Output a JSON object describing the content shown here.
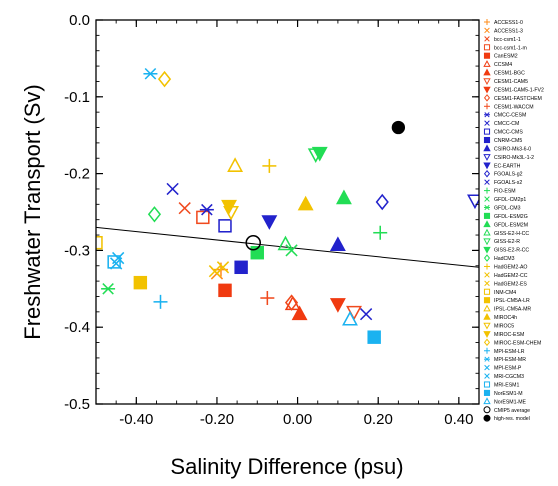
{
  "chart_data": {
    "type": "scatter",
    "title": "",
    "xlabel": "Salinity Difference (psu)",
    "ylabel": "Freshwater Transport (Sv)",
    "xlim": [
      -0.5,
      0.45
    ],
    "ylim": [
      -0.5,
      0.0
    ],
    "x_ticks": [
      -0.4,
      -0.2,
      0.0,
      0.2,
      0.4
    ],
    "x_tick_labels": [
      "-0.40",
      "-0.20",
      "0.00",
      "0.20",
      "0.40"
    ],
    "y_ticks": [
      0.0,
      -0.1,
      -0.2,
      -0.3,
      -0.4,
      -0.5
    ],
    "y_tick_labels": [
      "0.0",
      "-0.1",
      "-0.2",
      "-0.3",
      "-0.4",
      "-0.5"
    ],
    "grid": false,
    "legend_position": "right",
    "regression_line": {
      "x": [
        -0.5,
        0.45
      ],
      "y": [
        -0.27,
        -0.322
      ]
    },
    "series": [
      {
        "name": "ACCESS1-0",
        "marker": "plus",
        "color": "#ff8c1a",
        "filled": false,
        "points": [
          [
            -0.19,
            -0.325
          ]
        ]
      },
      {
        "name": "ACCESS1-3",
        "marker": "x",
        "color": "#ff8c1a",
        "filled": false,
        "points": [
          [
            -0.2,
            -0.33
          ]
        ]
      },
      {
        "name": "bcc-csm1-1",
        "marker": "x",
        "color": "#f04a1e",
        "filled": false,
        "points": [
          [
            -0.28,
            -0.245
          ]
        ]
      },
      {
        "name": "bcc-csm1-1-m",
        "marker": "square",
        "color": "#f04a1e",
        "filled": false,
        "points": [
          [
            -0.235,
            -0.257
          ]
        ]
      },
      {
        "name": "CanESM2",
        "marker": "square",
        "color": "#f03a10",
        "filled": true,
        "points": [
          [
            -0.18,
            -0.352
          ]
        ]
      },
      {
        "name": "CCSM4",
        "marker": "triangle",
        "color": "#f03a10",
        "filled": false,
        "points": [
          [
            -0.012,
            -0.37
          ]
        ]
      },
      {
        "name": "CESM1-BGC",
        "marker": "triangle",
        "color": "#f03a10",
        "filled": true,
        "points": [
          [
            0.005,
            -0.383
          ]
        ]
      },
      {
        "name": "CESM1-CAM5",
        "marker": "triangle-down",
        "color": "#f04a1e",
        "filled": false,
        "points": [
          [
            0.14,
            -0.38
          ]
        ]
      },
      {
        "name": "CESM1-CAM5-1-FV2",
        "marker": "triangle-down",
        "color": "#f03a10",
        "filled": true,
        "points": [
          [
            0.1,
            -0.37
          ]
        ]
      },
      {
        "name": "CESM1-FASTCHEM",
        "marker": "diamond",
        "color": "#f04a1e",
        "filled": false,
        "points": [
          [
            -0.015,
            -0.368
          ]
        ]
      },
      {
        "name": "CESM1-WACCM",
        "marker": "plus",
        "color": "#f04a1e",
        "filled": false,
        "points": [
          [
            -0.075,
            -0.362
          ]
        ]
      },
      {
        "name": "CMCC-CESM",
        "marker": "asterisk",
        "color": "#2222cc",
        "filled": false,
        "points": [
          [
            -0.225,
            -0.247
          ]
        ]
      },
      {
        "name": "CMCC-CM",
        "marker": "x",
        "color": "#2222cc",
        "filled": false,
        "points": [
          [
            -0.31,
            -0.22
          ]
        ]
      },
      {
        "name": "CMCC-CMS",
        "marker": "square",
        "color": "#2222cc",
        "filled": false,
        "points": [
          [
            -0.18,
            -0.268
          ]
        ]
      },
      {
        "name": "CNRM-CM5",
        "marker": "square",
        "color": "#2222cc",
        "filled": true,
        "points": [
          [
            -0.14,
            -0.322
          ]
        ]
      },
      {
        "name": "CSIRO-Mk3-6-0",
        "marker": "triangle",
        "color": "#2222cc",
        "filled": true,
        "points": [
          [
            0.1,
            -0.293
          ]
        ]
      },
      {
        "name": "CSIRO-Mk3L-1-2",
        "marker": "triangle-down",
        "color": "#2222cc",
        "filled": false,
        "points": [
          [
            0.44,
            -0.235
          ]
        ]
      },
      {
        "name": "EC-EARTH",
        "marker": "triangle-down",
        "color": "#2222cc",
        "filled": true,
        "points": [
          [
            -0.07,
            -0.262
          ]
        ]
      },
      {
        "name": "FGOALS-g2",
        "marker": "diamond",
        "color": "#2222cc",
        "filled": false,
        "points": [
          [
            0.21,
            -0.237
          ]
        ]
      },
      {
        "name": "FGOALS-s2",
        "marker": "x",
        "color": "#2222cc",
        "filled": false,
        "points": [
          [
            0.17,
            -0.383
          ]
        ]
      },
      {
        "name": "FIO-ESM",
        "marker": "plus",
        "color": "#22dd55",
        "filled": false,
        "points": [
          [
            0.205,
            -0.277
          ]
        ]
      },
      {
        "name": "GFDL-CM2p1",
        "marker": "x",
        "color": "#22dd55",
        "filled": false,
        "points": [
          [
            -0.015,
            -0.3
          ]
        ]
      },
      {
        "name": "GFDL-CM3",
        "marker": "asterisk",
        "color": "#22dd55",
        "filled": false,
        "points": [
          [
            -0.47,
            -0.35
          ]
        ]
      },
      {
        "name": "GFDL-ESM2G",
        "marker": "square",
        "color": "#22dd55",
        "filled": true,
        "points": [
          [
            -0.1,
            -0.303
          ]
        ]
      },
      {
        "name": "GFDL-ESM2M",
        "marker": "triangle",
        "color": "#22dd55",
        "filled": true,
        "points": [
          [
            0.115,
            -0.232
          ]
        ]
      },
      {
        "name": "GISS-E2-H-CC",
        "marker": "triangle",
        "color": "#22dd55",
        "filled": false,
        "points": [
          [
            -0.03,
            -0.292
          ]
        ]
      },
      {
        "name": "GISS-E2-R",
        "marker": "triangle-down",
        "color": "#22dd55",
        "filled": false,
        "points": [
          [
            0.045,
            -0.175
          ]
        ]
      },
      {
        "name": "GISS-E2-R-CC",
        "marker": "triangle-down",
        "color": "#22dd55",
        "filled": true,
        "points": [
          [
            0.055,
            -0.173
          ]
        ]
      },
      {
        "name": "HadCM3",
        "marker": "diamond",
        "color": "#22dd55",
        "filled": false,
        "points": [
          [
            -0.355,
            -0.253
          ]
        ]
      },
      {
        "name": "HadGEM2-AO",
        "marker": "plus",
        "color": "#f2c200",
        "filled": false,
        "points": [
          [
            -0.07,
            -0.19
          ]
        ]
      },
      {
        "name": "HadGEM2-CC",
        "marker": "x",
        "color": "#f2c200",
        "filled": false,
        "points": [
          [
            -0.185,
            -0.322
          ]
        ]
      },
      {
        "name": "HadGEM2-ES",
        "marker": "x",
        "color": "#f2c200",
        "filled": false,
        "points": [
          [
            -0.205,
            -0.327
          ]
        ]
      },
      {
        "name": "INM-CM4",
        "marker": "square",
        "color": "#f2c200",
        "filled": false,
        "points": [
          [
            -0.5,
            -0.29
          ]
        ]
      },
      {
        "name": "IPSL-CM5A-LR",
        "marker": "square",
        "color": "#f2c200",
        "filled": true,
        "points": [
          [
            -0.39,
            -0.342
          ]
        ]
      },
      {
        "name": "IPSL-CM5A-MR",
        "marker": "triangle",
        "color": "#f2c200",
        "filled": false,
        "points": [
          [
            -0.155,
            -0.19
          ]
        ]
      },
      {
        "name": "MIROC4h",
        "marker": "triangle",
        "color": "#f2c200",
        "filled": true,
        "points": [
          [
            0.02,
            -0.24
          ]
        ]
      },
      {
        "name": "MIROC5",
        "marker": "triangle-down",
        "color": "#f2c200",
        "filled": false,
        "points": [
          [
            -0.165,
            -0.25
          ]
        ]
      },
      {
        "name": "MIROC-ESM",
        "marker": "triangle-down",
        "color": "#f2c200",
        "filled": true,
        "points": [
          [
            -0.17,
            -0.242
          ]
        ]
      },
      {
        "name": "MIROC-ESM-CHEM",
        "marker": "diamond",
        "color": "#f2c200",
        "filled": false,
        "points": [
          [
            -0.33,
            -0.077
          ]
        ]
      },
      {
        "name": "MPI-ESM-LR",
        "marker": "plus",
        "color": "#1ab2f0",
        "filled": false,
        "points": [
          [
            -0.34,
            -0.367
          ]
        ]
      },
      {
        "name": "MPI-ESM-MR",
        "marker": "asterisk",
        "color": "#1ab2f0",
        "filled": false,
        "points": [
          [
            -0.365,
            -0.07
          ]
        ]
      },
      {
        "name": "MPI-ESM-P",
        "marker": "x",
        "color": "#1ab2f0",
        "filled": false,
        "points": [
          [
            -0.445,
            -0.31
          ]
        ]
      },
      {
        "name": "MRI-CGCM3",
        "marker": "x",
        "color": "#1ab2f0",
        "filled": false,
        "points": [
          [
            -0.45,
            -0.317
          ]
        ]
      },
      {
        "name": "MRI-ESM1",
        "marker": "square",
        "color": "#1ab2f0",
        "filled": false,
        "points": [
          [
            -0.455,
            -0.315
          ]
        ]
      },
      {
        "name": "NorESM1-M",
        "marker": "square",
        "color": "#1ab2f0",
        "filled": true,
        "points": [
          [
            0.19,
            -0.413
          ]
        ]
      },
      {
        "name": "NorESM1-ME",
        "marker": "triangle",
        "color": "#1ab2f0",
        "filled": false,
        "points": [
          [
            0.13,
            -0.39
          ]
        ]
      },
      {
        "name": "CMIP5 average",
        "marker": "circle",
        "color": "#000000",
        "filled": false,
        "points": [
          [
            -0.11,
            -0.29
          ]
        ]
      },
      {
        "name": "high-res. model",
        "marker": "circle",
        "color": "#000000",
        "filled": true,
        "points": [
          [
            0.25,
            -0.14
          ]
        ]
      }
    ]
  }
}
